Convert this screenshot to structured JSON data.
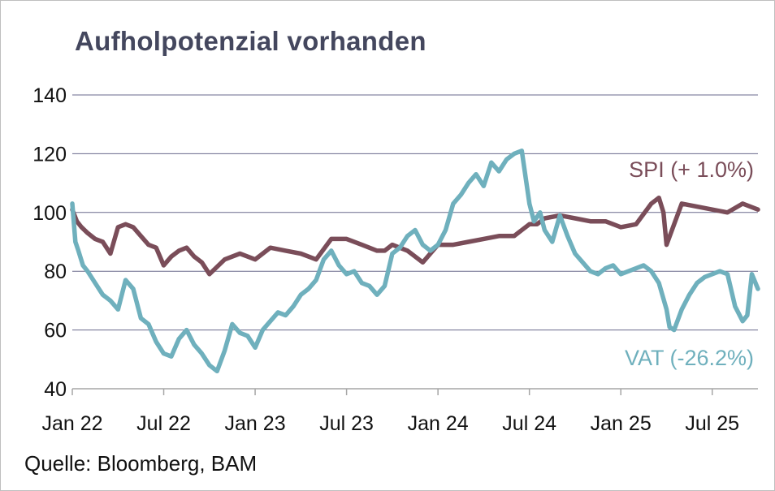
{
  "chart_data": {
    "type": "line",
    "title": "Aufholpotenzial vorhanden",
    "source": "Quelle: Bloomberg, BAM",
    "xlabel": "",
    "ylabel": "",
    "ylim": [
      40,
      140
    ],
    "yticks": [
      40,
      60,
      80,
      100,
      120,
      140
    ],
    "xticks": [
      "Jan 22",
      "Jul 22",
      "Jan 23",
      "Jul 23",
      "Jan 24",
      "Jul 24",
      "Jan 25",
      "Jul 25"
    ],
    "xrange_months": [
      0,
      45
    ],
    "grid": true,
    "series": [
      {
        "name": "SPI",
        "label": "SPI (+ 1.0%)",
        "color": "#7a4d59",
        "x": [
          0,
          0.3,
          0.6,
          1,
          1.5,
          2,
          2.5,
          3,
          3.5,
          4,
          4.5,
          5,
          5.5,
          6,
          6.5,
          7,
          7.5,
          8,
          8.5,
          9,
          10,
          11,
          11.5,
          12,
          13,
          14,
          15,
          16,
          17,
          18,
          19,
          20,
          20.5,
          21,
          22,
          23,
          24,
          25,
          26,
          27,
          28,
          29,
          29.5,
          30,
          30.5,
          31,
          32,
          33,
          34,
          35,
          36,
          37,
          38,
          38.5,
          38.8,
          39,
          40,
          41,
          42,
          43,
          44,
          45
        ],
        "y": [
          101,
          97,
          95,
          93,
          91,
          90,
          86,
          95,
          96,
          95,
          92,
          89,
          88,
          82,
          85,
          87,
          88,
          85,
          83,
          79,
          84,
          86,
          85,
          84,
          88,
          87,
          86,
          84,
          91,
          91,
          89,
          87,
          87,
          89,
          87,
          83,
          89,
          89,
          90,
          91,
          92,
          92,
          94,
          96,
          96,
          98,
          99,
          98,
          97,
          97,
          95,
          96,
          103,
          105,
          100,
          89,
          103,
          102,
          101,
          100,
          103,
          101
        ]
      },
      {
        "name": "VAT",
        "label": "VAT (-26.2%)",
        "color": "#6fb0bd",
        "x": [
          0,
          0.2,
          0.4,
          0.7,
          1,
          1.5,
          2,
          2.5,
          3,
          3.5,
          4,
          4.5,
          5,
          5.5,
          6,
          6.5,
          7,
          7.5,
          8,
          8.5,
          9,
          9.5,
          10,
          10.5,
          11,
          11.5,
          12,
          12.5,
          13,
          13.5,
          14,
          14.5,
          15,
          15.5,
          16,
          16.5,
          17,
          17.5,
          18,
          18.5,
          19,
          19.5,
          20,
          20.5,
          21,
          21.5,
          22,
          22.5,
          23,
          23.5,
          24,
          24.5,
          25,
          25.5,
          26,
          26.5,
          27,
          27.5,
          28,
          28.5,
          29,
          29.5,
          30,
          30.3,
          30.7,
          31,
          31.5,
          32,
          32.5,
          33,
          33.5,
          34,
          34.5,
          35,
          35.5,
          36,
          36.5,
          37,
          37.5,
          38,
          38.5,
          39,
          39.2,
          39.5,
          40,
          40.5,
          41,
          41.5,
          42,
          42.5,
          43,
          43.5,
          44,
          44.3,
          44.6,
          45
        ],
        "y": [
          103,
          90,
          87,
          82,
          80,
          76,
          72,
          70,
          67,
          77,
          74,
          64,
          62,
          56,
          52,
          51,
          57,
          60,
          55,
          52,
          48,
          46,
          53,
          62,
          59,
          58,
          54,
          60,
          63,
          66,
          65,
          68,
          72,
          74,
          77,
          84,
          87,
          82,
          79,
          80,
          76,
          75,
          72,
          75,
          86,
          88,
          92,
          94,
          89,
          87,
          89,
          94,
          103,
          106,
          110,
          113,
          109,
          117,
          114,
          118,
          120,
          121,
          103,
          97,
          100,
          94,
          90,
          99,
          92,
          86,
          83,
          80,
          79,
          81,
          82,
          79,
          80,
          81,
          82,
          80,
          76,
          67,
          61,
          60,
          67,
          72,
          76,
          78,
          79,
          80,
          79,
          68,
          63,
          65,
          79,
          74
        ]
      }
    ]
  }
}
